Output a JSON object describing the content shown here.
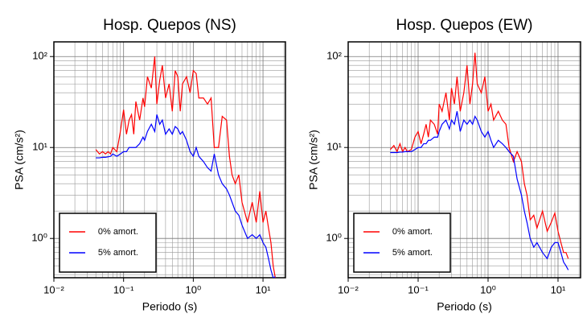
{
  "chart_data": [
    {
      "type": "line",
      "title": "Hosp. Quepos (NS)",
      "x_label": "Periodo (s)",
      "y_label": "PSA (cm/s²)",
      "log_x": true,
      "log_y": true,
      "grid": true,
      "minor_grid": true,
      "legend": "lower left",
      "xlim": [
        0.01,
        21
      ],
      "ylim": [
        0.37,
        145
      ],
      "xticks": [
        {
          "value": 0.01,
          "label": "10⁻²"
        },
        {
          "value": 0.1,
          "label": "10⁻¹"
        },
        {
          "value": 1,
          "label": "10⁰"
        },
        {
          "value": 10,
          "label": "10¹"
        }
      ],
      "yticks": [
        {
          "value": 1,
          "label": "10⁰"
        },
        {
          "value": 10,
          "label": "10¹"
        },
        {
          "value": 100,
          "label": "10²"
        }
      ],
      "x": [
        0.04,
        0.045,
        0.05,
        0.055,
        0.06,
        0.065,
        0.07,
        0.08,
        0.09,
        0.1,
        0.11,
        0.12,
        0.13,
        0.14,
        0.15,
        0.17,
        0.19,
        0.2,
        0.22,
        0.25,
        0.28,
        0.3,
        0.33,
        0.36,
        0.4,
        0.45,
        0.5,
        0.55,
        0.6,
        0.65,
        0.7,
        0.8,
        0.9,
        1.0,
        1.1,
        1.2,
        1.4,
        1.6,
        1.8,
        2.0,
        2.3,
        2.6,
        3.0,
        3.3,
        3.6,
        4.0,
        4.5,
        5,
        6,
        7,
        8,
        9,
        10,
        11,
        12,
        13,
        14,
        15
      ],
      "series": [
        {
          "name": "0% amort.",
          "color": "#ff0000",
          "values": [
            9.5,
            8.5,
            9,
            8.5,
            9,
            8.5,
            10,
            9,
            15,
            26,
            14,
            20,
            23,
            14,
            32,
            20,
            35,
            28,
            60,
            45,
            100,
            30,
            55,
            80,
            35,
            50,
            25,
            70,
            60,
            25,
            50,
            60,
            40,
            70,
            65,
            35,
            35,
            30,
            35,
            10,
            10,
            22,
            20,
            8,
            5,
            4,
            5,
            2.5,
            1.5,
            2.5,
            1.5,
            3.3,
            1.5,
            2.0,
            1.3,
            0.9,
            0.5,
            0.37
          ]
        },
        {
          "name": "5% amort.",
          "color": "#0000ff",
          "values": [
            7.7,
            7.7,
            7.8,
            7.8,
            7.9,
            8,
            8.5,
            8,
            8.5,
            9,
            9,
            10,
            10,
            10,
            10,
            11,
            13,
            12,
            15,
            18,
            15,
            23,
            18,
            20,
            14,
            16,
            14,
            17,
            16,
            14,
            15,
            12,
            9,
            8,
            10,
            8,
            7,
            6,
            5.5,
            8.5,
            5,
            4,
            3.5,
            3,
            2.5,
            2,
            1.8,
            1.4,
            1,
            1.1,
            1,
            1.1,
            0.9,
            0.8,
            0.6,
            0.45,
            0.37,
            0.38
          ]
        }
      ]
    },
    {
      "type": "line",
      "title": "Hosp. Quepos (EW)",
      "x_label": "Periodo (s)",
      "y_label": "PSA (cm/s²)",
      "log_x": true,
      "log_y": true,
      "grid": true,
      "minor_grid": true,
      "legend": "lower left",
      "xlim": [
        0.01,
        21
      ],
      "ylim": [
        0.37,
        145
      ],
      "xticks": [
        {
          "value": 0.01,
          "label": "10⁻²"
        },
        {
          "value": 0.1,
          "label": "10⁻¹"
        },
        {
          "value": 1,
          "label": "10⁰"
        },
        {
          "value": 10,
          "label": "10¹"
        }
      ],
      "yticks": [
        {
          "value": 1,
          "label": "10⁰"
        },
        {
          "value": 10,
          "label": "10¹"
        },
        {
          "value": 100,
          "label": "10²"
        }
      ],
      "x": [
        0.04,
        0.045,
        0.05,
        0.055,
        0.06,
        0.065,
        0.07,
        0.08,
        0.09,
        0.1,
        0.11,
        0.12,
        0.13,
        0.14,
        0.15,
        0.17,
        0.19,
        0.2,
        0.22,
        0.25,
        0.28,
        0.3,
        0.33,
        0.36,
        0.4,
        0.45,
        0.5,
        0.55,
        0.6,
        0.65,
        0.7,
        0.8,
        0.9,
        1.0,
        1.1,
        1.2,
        1.4,
        1.6,
        1.8,
        2.0,
        2.3,
        2.6,
        3.0,
        3.3,
        3.6,
        4.0,
        4.5,
        5,
        6,
        7,
        8,
        9,
        10,
        11,
        12,
        13,
        14
      ],
      "series": [
        {
          "name": "0% amort.",
          "color": "#ff0000",
          "values": [
            9.5,
            10.5,
            9,
            11,
            9,
            10,
            9,
            9.5,
            13,
            15,
            11,
            14,
            18,
            13,
            20,
            18,
            14,
            30,
            25,
            40,
            20,
            45,
            30,
            60,
            25,
            40,
            80,
            30,
            50,
            110,
            50,
            40,
            60,
            25,
            30,
            20,
            25,
            20,
            18,
            10,
            7,
            9,
            7,
            4,
            3,
            1.6,
            1.8,
            1.3,
            2.0,
            1.2,
            1.5,
            1.9,
            1.2,
            0.9,
            0.7,
            0.7,
            0.6
          ]
        },
        {
          "name": "5% amort.",
          "color": "#0000ff",
          "values": [
            8.8,
            8.8,
            8.8,
            8.9,
            8.9,
            9,
            9,
            9,
            9.5,
            10,
            10,
            11,
            11,
            12,
            12,
            13,
            13,
            15,
            18,
            20,
            16,
            20,
            18,
            25,
            15,
            20,
            18,
            20,
            18,
            22,
            20,
            15,
            13,
            15,
            12,
            10,
            12,
            11,
            10,
            9,
            8,
            4.5,
            3,
            2,
            1.5,
            1,
            0.8,
            0.9,
            0.7,
            0.6,
            0.8,
            0.9,
            0.9,
            0.7,
            0.55,
            0.5,
            0.45
          ]
        }
      ]
    }
  ]
}
